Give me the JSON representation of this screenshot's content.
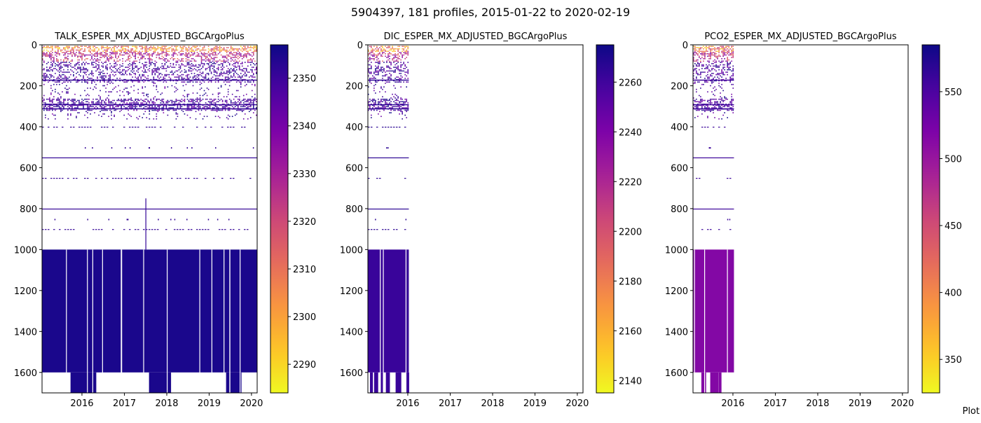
{
  "figure": {
    "title": "5904397, 181 profiles, 2015-01-22 to 2020-02-19",
    "footer_text": "Plot"
  },
  "chart_data": [
    {
      "type": "heatmap",
      "title": "TALK_ESPER_MX_ADJUSTED_BGCArgoPlus",
      "x_ticks": [
        "2016",
        "2017",
        "2018",
        "2019",
        "2020"
      ],
      "xlim": [
        "2015-01-22",
        "2020-02-19"
      ],
      "ylim": [
        1700,
        0
      ],
      "y_ticks": [
        0,
        200,
        400,
        600,
        800,
        1000,
        1200,
        1400,
        1600
      ],
      "colormap": "plasma_r",
      "color_range": [
        2284,
        2357
      ],
      "colorbar_ticks": [
        2290,
        2300,
        2310,
        2320,
        2330,
        2340,
        2350
      ],
      "data_end": "2020-02-19",
      "deep_value": 2355,
      "deep_bottom": 1600,
      "mid_value": 2351
    },
    {
      "type": "heatmap",
      "title": "DIC_ESPER_MX_ADJUSTED_BGCArgoPlus",
      "x_ticks": [
        "2016",
        "2017",
        "2018",
        "2019",
        "2020"
      ],
      "xlim": [
        "2015-01-22",
        "2020-02-19"
      ],
      "ylim": [
        1700,
        0
      ],
      "y_ticks": [
        0,
        200,
        400,
        600,
        800,
        1000,
        1200,
        1400,
        1600
      ],
      "colormap": "plasma_r",
      "color_range": [
        2135,
        2275
      ],
      "colorbar_ticks": [
        2140,
        2160,
        2180,
        2200,
        2220,
        2240,
        2260
      ],
      "data_end": "2016-01-10",
      "deep_value": 2262,
      "deep_bottom": 1600,
      "mid_value": 2266
    },
    {
      "type": "heatmap",
      "title": "PCO2_ESPER_MX_ADJUSTED_BGCArgoPlus",
      "x_ticks": [
        "2016",
        "2017",
        "2018",
        "2019",
        "2020"
      ],
      "xlim": [
        "2015-01-22",
        "2020-02-19"
      ],
      "ylim": [
        1700,
        0
      ],
      "y_ticks": [
        0,
        200,
        400,
        600,
        800,
        1000,
        1200,
        1400,
        1600
      ],
      "colormap": "plasma_r",
      "color_range": [
        325,
        585
      ],
      "colorbar_ticks": [
        350,
        400,
        450,
        500,
        550
      ],
      "data_end": "2016-01-10",
      "deep_value": 515,
      "deep_bottom": 1600,
      "mid_value": 560
    }
  ]
}
